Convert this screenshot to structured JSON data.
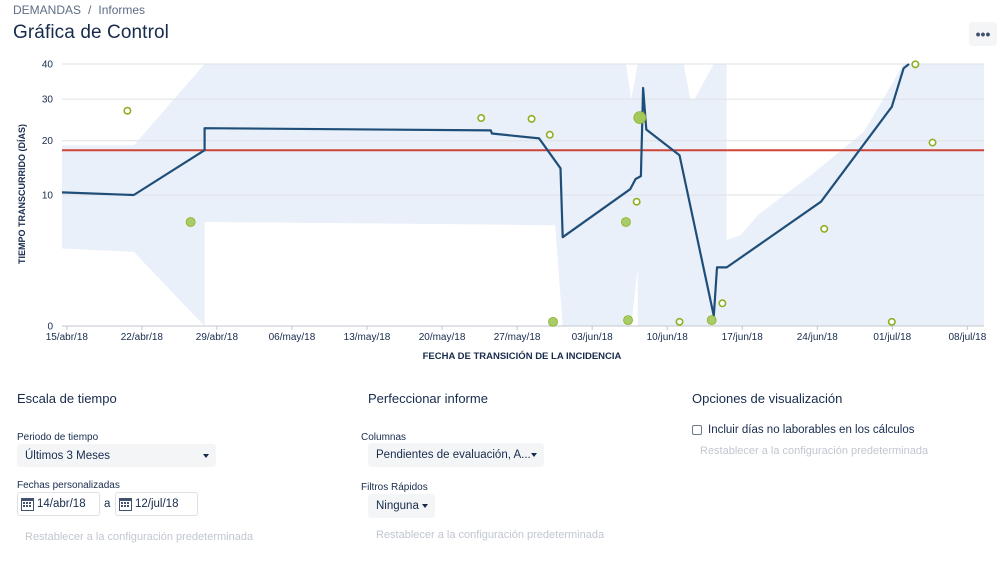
{
  "breadcrumb": {
    "project": "DEMANDAS",
    "separator": "/",
    "page": "Informes"
  },
  "title": "Gráfica de Control",
  "more_button": "•••",
  "chart_data": {
    "type": "control_chart",
    "xlabel": "FECHA DE TRANSICIÓN DE LA INCIDENCIA",
    "ylabel": "TIEMPO TRANSCURRIDO (DÍAS)",
    "x_ticks": [
      "15/abr/18",
      "22/abr/18",
      "29/abr/18",
      "06/may/18",
      "13/may/18",
      "20/may/18",
      "27/may/18",
      "03/jun/18",
      "10/jun/18",
      "17/jun/18",
      "24/jun/18",
      "01/jul/18",
      "08/jul/18"
    ],
    "y_ticks": [
      "0",
      "10",
      "20",
      "30",
      "40"
    ],
    "y_tick_values": [
      0,
      10,
      20,
      30,
      40
    ],
    "y_scale": "sqrt",
    "ylim": [
      0,
      40
    ],
    "average": 18,
    "colors": {
      "rolling": "#1f4e79",
      "average": "#d04437",
      "band": "#e9f0f9",
      "issue": "#8eb021"
    },
    "rolling_average": [
      [
        0,
        10.4
      ],
      [
        6.7,
        10.0
      ],
      [
        13.3,
        18.0
      ],
      [
        13.3,
        22.8
      ],
      [
        40,
        22.3
      ],
      [
        40.1,
        21.6
      ],
      [
        44.5,
        20.5
      ],
      [
        46.5,
        14.5
      ],
      [
        46.7,
        4.6
      ],
      [
        53,
        10.9
      ],
      [
        53.5,
        12.6
      ],
      [
        54,
        13.1
      ],
      [
        54.2,
        33.0
      ],
      [
        54.5,
        22.5
      ],
      [
        57.6,
        17.0
      ],
      [
        60.8,
        0.06
      ],
      [
        61.1,
        2.0
      ],
      [
        62,
        2.0
      ],
      [
        70.8,
        9.0
      ],
      [
        77.4,
        28.0
      ],
      [
        78.5,
        38.7
      ],
      [
        79,
        40
      ]
    ],
    "band_upper": [
      [
        0,
        19.0
      ],
      [
        6.7,
        19.0
      ],
      [
        13.3,
        40
      ],
      [
        38.6,
        40
      ],
      [
        46,
        40
      ],
      [
        46.7,
        40
      ],
      [
        52.6,
        40
      ],
      [
        53.1,
        30
      ],
      [
        53.7,
        40
      ],
      [
        57.3,
        40
      ],
      [
        57.3,
        40
      ],
      [
        58,
        40
      ],
      [
        58.6,
        30
      ],
      [
        59,
        30
      ],
      [
        60.8,
        40
      ],
      [
        62,
        40
      ],
      [
        62,
        4.3
      ],
      [
        63.3,
        4.8
      ],
      [
        65,
        7.3
      ],
      [
        69.9,
        13.3
      ],
      [
        74.8,
        22.0
      ],
      [
        78.5,
        40
      ],
      [
        86,
        40
      ],
      [
        86,
        20.9
      ],
      [
        86,
        20.9
      ]
    ],
    "band_lower": [
      [
        0,
        3.5
      ],
      [
        6.7,
        3.2
      ],
      [
        13.3,
        0
      ],
      [
        13.3,
        6.3
      ],
      [
        40,
        6.0
      ],
      [
        46.0,
        5.9
      ],
      [
        46.7,
        0
      ],
      [
        53.1,
        0
      ],
      [
        53.1,
        0
      ],
      [
        53.7,
        2.0
      ],
      [
        53.7,
        0
      ],
      [
        57.3,
        0
      ],
      [
        57.3,
        0
      ],
      [
        58.0,
        0
      ],
      [
        58.6,
        0
      ],
      [
        59.0,
        0
      ],
      [
        60.8,
        0
      ],
      [
        62,
        0
      ],
      [
        63.3,
        0
      ],
      [
        65,
        0
      ],
      [
        69.9,
        0
      ],
      [
        74.8,
        0
      ],
      [
        78.5,
        0
      ],
      [
        86,
        0
      ]
    ],
    "issues": [
      {
        "x": 6.1,
        "y": 27.0,
        "filled": false,
        "size": 1
      },
      {
        "x": 12.0,
        "y": 6.3,
        "filled": true,
        "size": 1
      },
      {
        "x": 39.1,
        "y": 25.2,
        "filled": false,
        "size": 1
      },
      {
        "x": 43.8,
        "y": 25.0,
        "filled": false,
        "size": 1
      },
      {
        "x": 45.5,
        "y": 21.3,
        "filled": false,
        "size": 1
      },
      {
        "x": 45.8,
        "y": 0.01,
        "filled": true,
        "size": 1
      },
      {
        "x": 52.6,
        "y": 6.3,
        "filled": true,
        "size": 1
      },
      {
        "x": 52.8,
        "y": 0.02,
        "filled": true,
        "size": 1
      },
      {
        "x": 53.6,
        "y": 9.0,
        "filled": false,
        "size": 1
      },
      {
        "x": 53.9,
        "y": 25.3,
        "filled": true,
        "size": 2
      },
      {
        "x": 57.6,
        "y": 0.01,
        "filled": false,
        "size": 1
      },
      {
        "x": 60.6,
        "y": 0.02,
        "filled": true,
        "size": 1
      },
      {
        "x": 61.6,
        "y": 0.3,
        "filled": false,
        "size": 1
      },
      {
        "x": 71.1,
        "y": 5.5,
        "filled": false,
        "size": 1
      },
      {
        "x": 77.4,
        "y": 0.01,
        "filled": false,
        "size": 1
      },
      {
        "x": 79.6,
        "y": 39.9,
        "filled": false,
        "size": 1
      },
      {
        "x": 81.2,
        "y": 19.6,
        "filled": false,
        "size": 1
      }
    ],
    "xlim": [
      0,
      86
    ]
  },
  "time_scale": {
    "title": "Escala de tiempo",
    "period_label": "Periodo de tiempo",
    "period_value": "Últimos 3 Meses",
    "custom_dates_label": "Fechas personalizadas",
    "date_from": "14/abr/18",
    "date_separator": "a",
    "date_to": "12/jul/18",
    "reset": "Restablecer a la configuración predeterminada"
  },
  "refine": {
    "title": "Perfeccionar informe",
    "columns_label": "Columnas",
    "columns_value": "Pendientes de evaluación, A...",
    "quick_filters_label": "Filtros Rápidos",
    "quick_filters_value": "Ninguna",
    "reset": "Restablecer a la configuración predeterminada"
  },
  "display": {
    "title": "Opciones de visualización",
    "checkbox_label": "Incluir días no laborables en los cálculos",
    "checkbox_checked": false,
    "reset": "Restablecer a la configuración predeterminada"
  }
}
